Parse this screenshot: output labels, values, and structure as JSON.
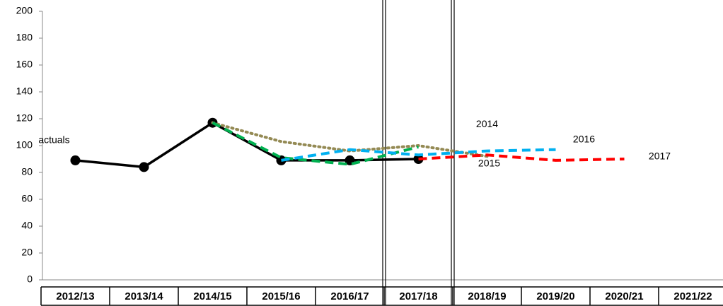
{
  "chart_data": {
    "type": "line",
    "categories": [
      "2012/13",
      "2013/14",
      "2014/15",
      "2015/16",
      "2016/17",
      "2017/18",
      "2018/19",
      "2019/20",
      "2020/21",
      "2021/22"
    ],
    "ylim": [
      0,
      200
    ],
    "yticks": [
      0,
      20,
      40,
      60,
      80,
      100,
      120,
      140,
      160,
      180,
      200
    ],
    "series": [
      {
        "name": "actuals",
        "color": "#000000",
        "style": "solid",
        "markers": true,
        "values": [
          89,
          84,
          117,
          89,
          89,
          90,
          null,
          null,
          null,
          null
        ]
      },
      {
        "name": "2014",
        "color": "#948a54",
        "style": "dotted",
        "values": [
          null,
          null,
          117,
          103,
          96,
          100,
          92,
          null,
          null,
          null
        ]
      },
      {
        "name": "2015",
        "color": "#00b050",
        "style": "dashed",
        "values": [
          null,
          null,
          117,
          91,
          86,
          99,
          null,
          null,
          null,
          null
        ]
      },
      {
        "name": "2016",
        "color": "#00b0f0",
        "style": "dashed",
        "values": [
          null,
          null,
          null,
          89,
          97,
          93,
          96,
          97,
          null,
          null
        ]
      },
      {
        "name": "2017",
        "color": "#ff0000",
        "style": "dashed",
        "values": [
          null,
          null,
          null,
          null,
          null,
          90,
          93,
          89,
          90,
          null
        ]
      }
    ]
  }
}
